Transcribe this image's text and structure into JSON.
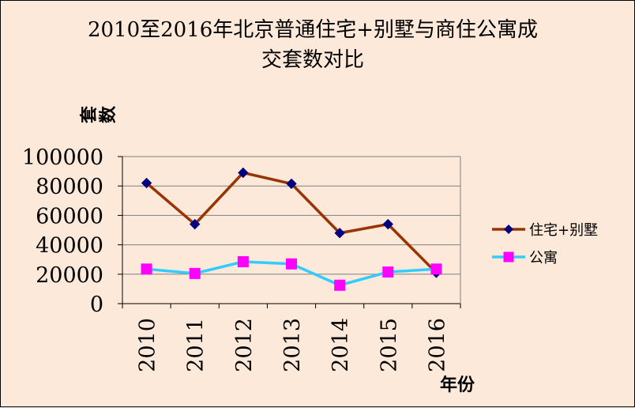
{
  "chart_data": {
    "type": "line",
    "title": "2010至2016年北京普通住宅+别墅与商住公寓成\n交套数对比",
    "xlabel": "年份",
    "ylabel": "套数",
    "categories": [
      "2010",
      "2011",
      "2012",
      "2013",
      "2014",
      "2015",
      "2016"
    ],
    "ylim": [
      0,
      100000
    ],
    "yticks": [
      "0",
      "20000",
      "40000",
      "60000",
      "80000",
      "100000"
    ],
    "grid": true,
    "legend": "right",
    "series": [
      {
        "name": "住宅+别墅",
        "values": [
          82000,
          54000,
          89000,
          81500,
          48000,
          54000,
          21000
        ],
        "line_color": "#993300",
        "marker_color": "#000080",
        "marker": "diamond"
      },
      {
        "name": "公寓",
        "values": [
          23500,
          20500,
          28500,
          27000,
          12500,
          21500,
          23500
        ],
        "line_color": "#33ccff",
        "marker_color": "#ff00ff",
        "marker": "square"
      }
    ]
  }
}
